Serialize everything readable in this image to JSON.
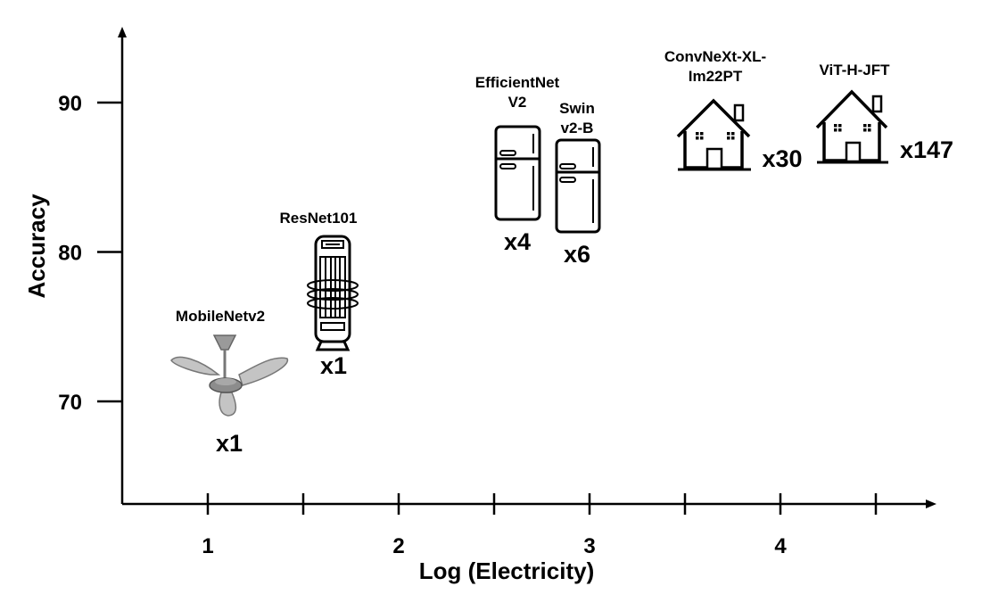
{
  "chart_data": {
    "type": "scatter",
    "title": "",
    "xlabel": "Log (Electricity)",
    "ylabel": "Accuracy",
    "x_ticks": [
      1,
      2,
      3,
      4
    ],
    "y_ticks": [
      70,
      80,
      90
    ],
    "xlim": [
      0.55,
      4.8
    ],
    "ylim": [
      63,
      96
    ],
    "grid": false,
    "points": [
      {
        "label": "MobileNetv2",
        "multiplier": "x1",
        "icon": "ceiling-fan-icon",
        "x": 1.1,
        "y": 71.9
      },
      {
        "label": "ResNet101",
        "multiplier": "x1",
        "icon": "tower-fan-icon",
        "x": 1.65,
        "y": 77.4
      },
      {
        "label": "EfficientNet V2",
        "multiplier": "x4",
        "icon": "refrigerator-icon",
        "x": 2.6,
        "y": 85.5
      },
      {
        "label": "Swin v2-B",
        "multiplier": "x6",
        "icon": "refrigerator-icon",
        "x": 2.95,
        "y": 85.0
      },
      {
        "label": "ConvNeXt-XL-Im22PT",
        "multiplier": "x30",
        "icon": "house-icon",
        "x": 3.72,
        "y": 87.8
      },
      {
        "label": "ViT-H-JFT",
        "multiplier": "x147",
        "icon": "house-icon",
        "x": 4.38,
        "y": 88.6
      }
    ]
  },
  "labels": {
    "mobilenet": "MobileNetv2",
    "resnet": "ResNet101",
    "efficientnet_line1": "EfficientNet",
    "efficientnet_line2": "V2",
    "swin_line1": "Swin",
    "swin_line2": "v2-B",
    "convnext_line1": "ConvNeXt-XL-",
    "convnext_line2": "Im22PT",
    "vit": "ViT-H-JFT"
  },
  "multipliers": {
    "mobilenet": "x1",
    "resnet": "x1",
    "efficientnet": "x4",
    "swin": "x6",
    "convnext": "x30",
    "vit": "x147"
  }
}
